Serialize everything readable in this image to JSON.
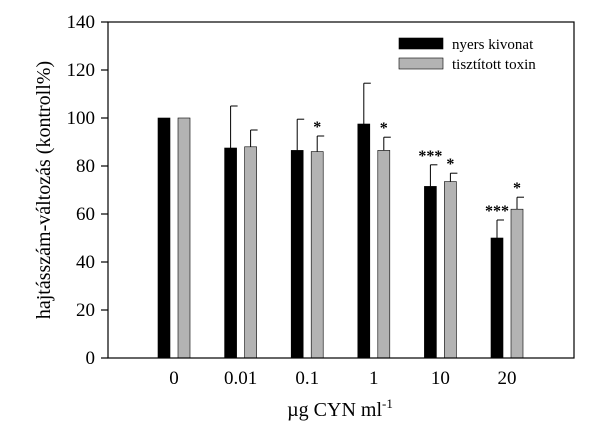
{
  "chart_data": {
    "type": "bar",
    "title": "",
    "xlabel": "µg CYN ml",
    "xlabel_superscript": "-1",
    "ylabel": "hajtásszám-változás (kontroll%)",
    "ylim": [
      0,
      140
    ],
    "yticks": [
      0,
      20,
      40,
      60,
      80,
      100,
      120,
      140
    ],
    "grid": false,
    "legend_position": "top-right",
    "categories": [
      "0",
      "0.01",
      "0.1",
      "1",
      "10",
      "20"
    ],
    "series": [
      {
        "name": "nyers kivonat",
        "color": "#000000",
        "values": [
          100,
          87.5,
          86.5,
          97.5,
          71.5,
          50
        ],
        "errors": [
          0,
          17.5,
          13,
          17,
          9,
          7.5
        ],
        "significance": [
          "",
          "",
          "",
          "",
          "***",
          "***"
        ]
      },
      {
        "name": "tisztított toxin",
        "color": "#b3b3b3",
        "values": [
          100,
          88,
          86,
          86.5,
          73.5,
          62
        ],
        "errors": [
          0,
          7,
          6.5,
          5.5,
          3.5,
          5
        ],
        "significance": [
          "",
          "",
          "*",
          "*",
          "*",
          "*"
        ]
      }
    ]
  }
}
